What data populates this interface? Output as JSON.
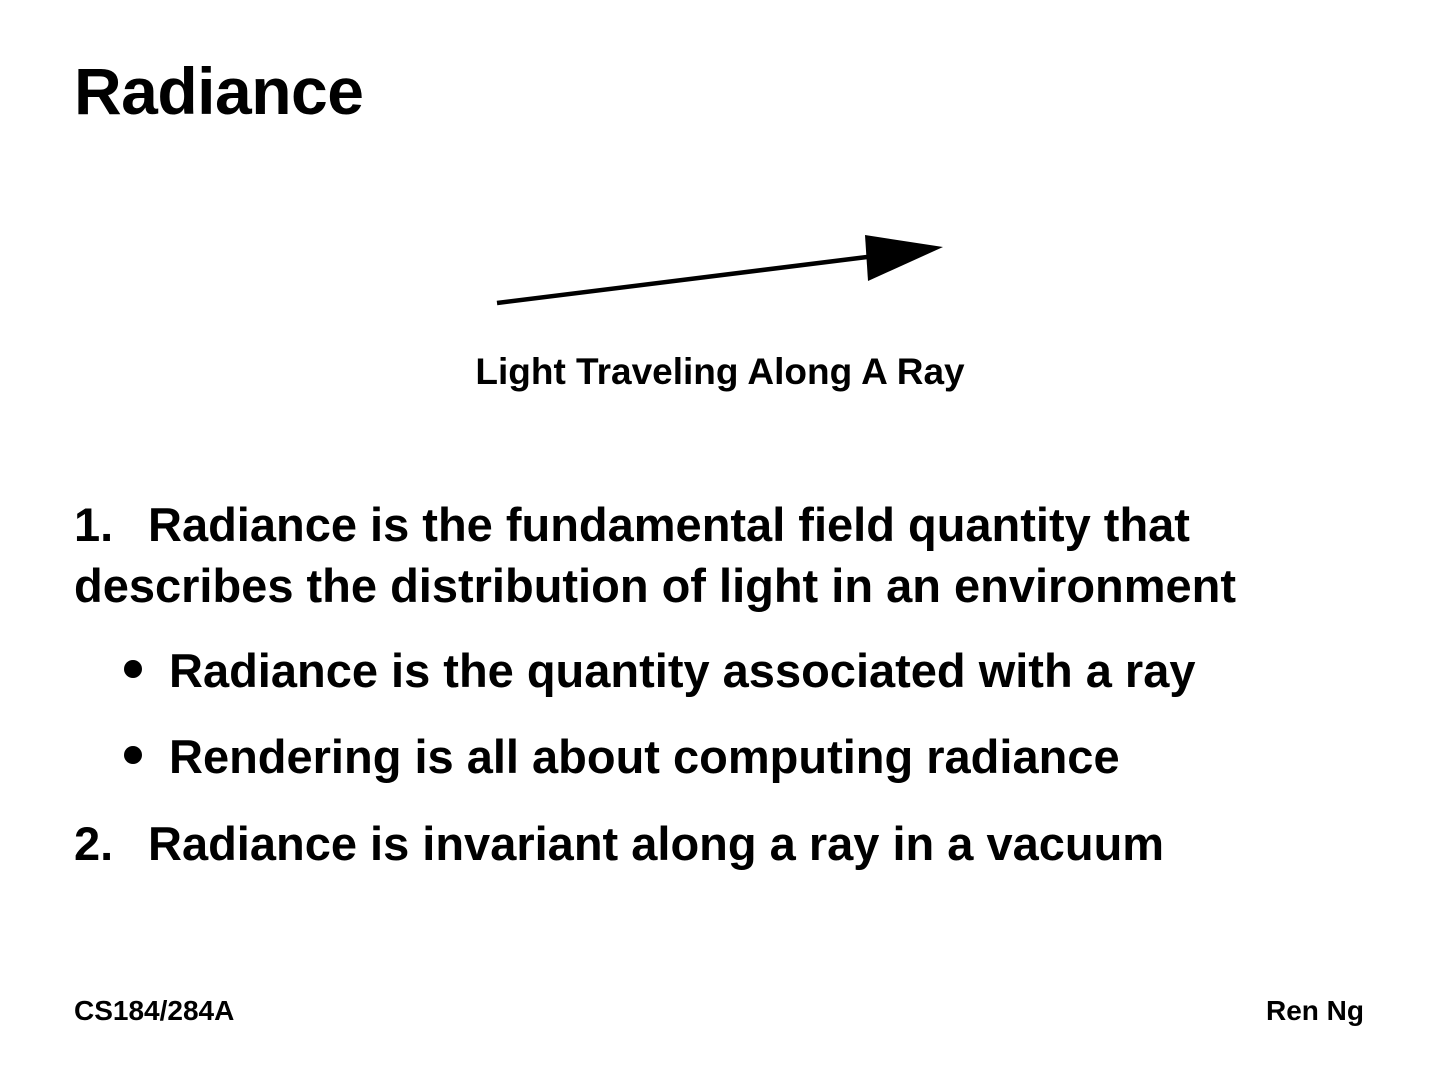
{
  "slide": {
    "title": "Radiance",
    "diagram_caption": "Light Traveling Along A Ray",
    "items": [
      {
        "number": "1.",
        "text_line1": "Radiance is the fundamental field quantity that",
        "text_line2": "describes the distribution of light in an environment"
      },
      {
        "number": "2.",
        "text_line1": "Radiance is invariant along a ray in a vacuum"
      }
    ],
    "bullets": [
      "Radiance is the quantity associated with a ray",
      "Rendering is all about computing radiance"
    ],
    "footer": {
      "course": "CS184/284A",
      "author": "Ren Ng"
    }
  }
}
